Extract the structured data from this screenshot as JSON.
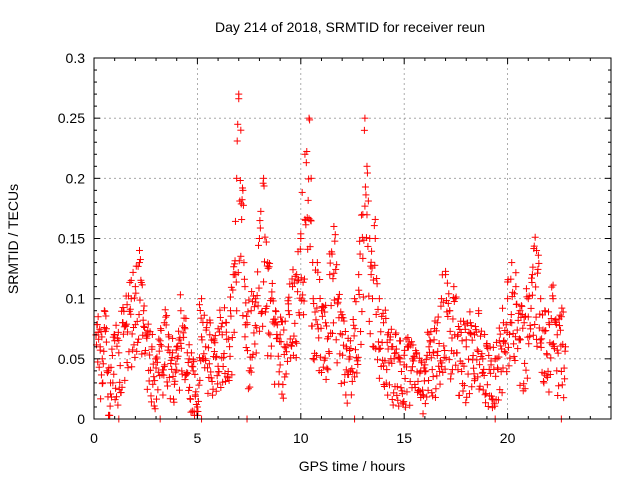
{
  "chart_data": {
    "type": "scatter",
    "title": "Day 214 of 2018, SRMTID for receiver reun",
    "xlabel": "GPS time / hours",
    "ylabel": "SRMTID / TECUs",
    "xlim": [
      0,
      25
    ],
    "ylim": [
      0,
      0.3
    ],
    "x_ticks": [
      0,
      5,
      10,
      15,
      20
    ],
    "x_tick_labels": [
      "0",
      "5",
      "10",
      "15",
      "20"
    ],
    "y_ticks": [
      0,
      0.05,
      0.1,
      0.15,
      0.2,
      0.25,
      0.3
    ],
    "y_tick_labels": [
      "0",
      "0.05",
      "0.1",
      "0.15",
      "0.2",
      "0.25",
      "0.3"
    ],
    "grid": true,
    "marker": "plus",
    "color": "#ff0000",
    "x": [
      0.1,
      0.2,
      0.3,
      0.4,
      0.5,
      0.6,
      0.7,
      0.8,
      1.0,
      1.2,
      1.4,
      1.6,
      1.8,
      2.0,
      2.2,
      2.4,
      2.6,
      2.8,
      3.0,
      3.2,
      3.4,
      3.6,
      3.8,
      4.0,
      4.2,
      4.4,
      4.6,
      4.8,
      4.9,
      5.0,
      5.1,
      5.2,
      5.4,
      5.6,
      5.8,
      6.0,
      6.2,
      6.4,
      6.6,
      6.8,
      6.9,
      7.0,
      7.1,
      7.2,
      7.3,
      7.4,
      7.6,
      7.8,
      8.0,
      8.2,
      8.4,
      8.6,
      8.8,
      9.0,
      9.2,
      9.4,
      9.6,
      9.8,
      10.0,
      10.2,
      10.4,
      10.5,
      10.6,
      10.8,
      11.0,
      11.2,
      11.4,
      11.6,
      11.8,
      12.0,
      12.2,
      12.4,
      12.6,
      12.8,
      13.0,
      13.1,
      13.2,
      13.4,
      13.6,
      13.8,
      14.0,
      14.2,
      14.4,
      14.6,
      14.8,
      15.0,
      15.2,
      15.4,
      15.6,
      15.8,
      16.0,
      16.2,
      16.4,
      16.6,
      16.8,
      17.0,
      17.2,
      17.4,
      17.6,
      17.8,
      18.0,
      18.2,
      18.4,
      18.6,
      18.8,
      19.0,
      19.2,
      19.4,
      19.6,
      19.8,
      20.0,
      20.2,
      20.4,
      20.6,
      20.8,
      21.0,
      21.2,
      21.4,
      21.6,
      21.8,
      22.0,
      22.2,
      22.4,
      22.6,
      22.8
    ],
    "y": [
      0.07,
      0.085,
      0.06,
      0.05,
      0.09,
      0.075,
      0.04,
      0.03,
      0.065,
      0.055,
      0.08,
      0.095,
      0.1,
      0.11,
      0.13,
      0.09,
      0.07,
      0.06,
      0.05,
      0.065,
      0.08,
      0.07,
      0.055,
      0.06,
      0.09,
      0.075,
      0.05,
      0.04,
      0.02,
      0.01,
      0.095,
      0.1,
      0.06,
      0.07,
      0.065,
      0.075,
      0.07,
      0.08,
      0.09,
      0.12,
      0.2,
      0.27,
      0.24,
      0.19,
      0.11,
      0.08,
      0.09,
      0.1,
      0.15,
      0.2,
      0.13,
      0.1,
      0.08,
      0.07,
      0.06,
      0.09,
      0.11,
      0.12,
      0.15,
      0.22,
      0.25,
      0.2,
      0.1,
      0.13,
      0.09,
      0.08,
      0.12,
      0.16,
      0.1,
      0.07,
      0.06,
      0.065,
      0.1,
      0.12,
      0.17,
      0.25,
      0.21,
      0.12,
      0.15,
      0.1,
      0.08,
      0.07,
      0.06,
      0.055,
      0.05,
      0.045,
      0.06,
      0.05,
      0.055,
      0.04,
      0.045,
      0.06,
      0.055,
      0.08,
      0.1,
      0.12,
      0.09,
      0.11,
      0.07,
      0.065,
      0.06,
      0.08,
      0.07,
      0.09,
      0.05,
      0.06,
      0.045,
      0.05,
      0.065,
      0.08,
      0.1,
      0.13,
      0.11,
      0.09,
      0.08,
      0.1,
      0.12,
      0.14,
      0.1,
      0.09,
      0.08,
      0.1,
      0.07,
      0.085,
      0.06
    ],
    "zero_points_x": [
      1.2,
      3.2,
      5.2,
      7.4,
      12.6,
      19.4,
      22.6
    ]
  }
}
